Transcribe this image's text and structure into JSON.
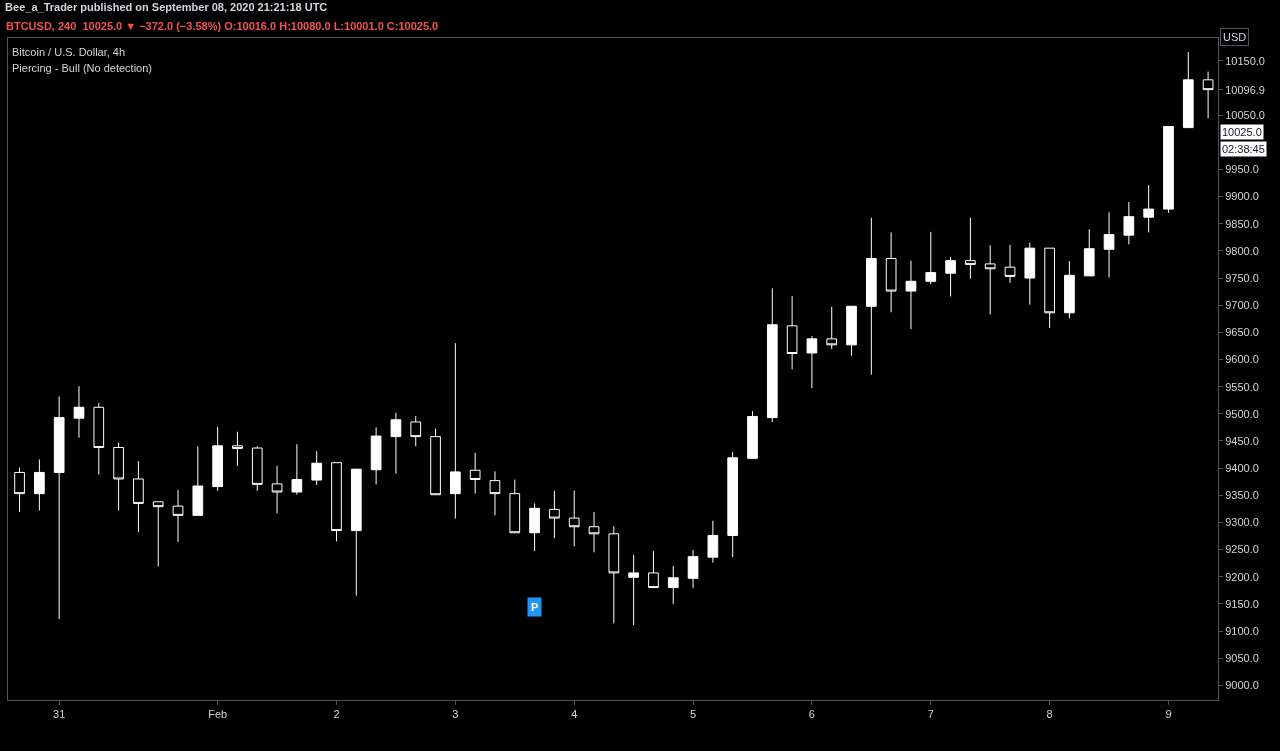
{
  "chart_data": {
    "type": "candlestick",
    "title": "Bee_a_Trader published on September 08, 2020 21:21:18 UTC",
    "subtitle": "BTCUSD, 240  10025.0 ▼ −372.0 (−3.58%) O:10016.0 H:10080.0 L:10001.0 C:10025.0",
    "annotations": [
      "Bitcoin / U.S. Dollar, 4h",
      "Piercing - Bull (No detection)",
      {
        "text": "P",
        "x": "2020-02-03T16:00",
        "y": 9145
      },
      "10025.0",
      "02:38:45"
    ],
    "x": [
      "2020-01-30T08:00",
      "2020-01-30T12:00",
      "2020-01-30T16:00",
      "2020-01-30T20:00",
      "2020-01-31T00:00",
      "2020-01-31T04:00",
      "2020-01-31T08:00",
      "2020-01-31T12:00",
      "2020-01-31T16:00",
      "2020-01-31T20:00",
      "2020-02-01T00:00",
      "2020-02-01T04:00",
      "2020-02-01T08:00",
      "2020-02-01T12:00",
      "2020-02-01T16:00",
      "2020-02-01T20:00",
      "2020-02-02T00:00",
      "2020-02-02T04:00",
      "2020-02-02T08:00",
      "2020-02-02T12:00",
      "2020-02-02T16:00",
      "2020-02-02T20:00",
      "2020-02-03T00:00",
      "2020-02-03T04:00",
      "2020-02-03T08:00",
      "2020-02-03T12:00",
      "2020-02-03T16:00",
      "2020-02-03T20:00",
      "2020-02-04T00:00",
      "2020-02-04T04:00",
      "2020-02-04T08:00",
      "2020-02-04T12:00",
      "2020-02-04T16:00",
      "2020-02-04T20:00",
      "2020-02-05T00:00",
      "2020-02-05T04:00",
      "2020-02-05T08:00",
      "2020-02-05T12:00",
      "2020-02-05T16:00",
      "2020-02-05T20:00",
      "2020-02-06T00:00",
      "2020-02-06T04:00",
      "2020-02-06T08:00",
      "2020-02-06T12:00",
      "2020-02-06T16:00",
      "2020-02-06T20:00",
      "2020-02-07T00:00",
      "2020-02-07T04:00",
      "2020-02-07T08:00",
      "2020-02-07T12:00",
      "2020-02-07T16:00",
      "2020-02-07T20:00",
      "2020-02-08T00:00",
      "2020-02-08T04:00",
      "2020-02-08T08:00",
      "2020-02-08T12:00",
      "2020-02-08T16:00",
      "2020-02-08T20:00",
      "2020-02-09T00:00",
      "2020-02-09T04:00",
      "2020-02-09T08:00"
    ],
    "series": [
      {
        "color": "#ffffff",
        "ohlc": [
          [
            9392,
            9401,
            9319,
            9353
          ],
          [
            9353,
            9416,
            9322,
            9392
          ],
          [
            9392,
            9532,
            9122,
            9493
          ],
          [
            9492,
            9551,
            9456,
            9512
          ],
          [
            9512,
            9520,
            9388,
            9438
          ],
          [
            9438,
            9447,
            9322,
            9380
          ],
          [
            9380,
            9413,
            9282,
            9335
          ],
          [
            9338,
            9338,
            9219,
            9329
          ],
          [
            9330,
            9360,
            9264,
            9313
          ],
          [
            9313,
            9440,
            9313,
            9367
          ],
          [
            9366,
            9476,
            9358,
            9441
          ],
          [
            9441,
            9467,
            9404,
            9436
          ],
          [
            9437,
            9440,
            9358,
            9370
          ],
          [
            9371,
            9404,
            9317,
            9356
          ],
          [
            9356,
            9444,
            9351,
            9379
          ],
          [
            9378,
            9431,
            9369,
            9409
          ],
          [
            9410,
            9410,
            9265,
            9285
          ],
          [
            9285,
            9399,
            9165,
            9398
          ],
          [
            9397,
            9475,
            9370,
            9459
          ],
          [
            9458,
            9502,
            9390,
            9489
          ],
          [
            9485,
            9496,
            9440,
            9458
          ],
          [
            9458,
            9473,
            9351,
            9351
          ],
          [
            9353,
            9630,
            9307,
            9393
          ],
          [
            9396,
            9428,
            9353,
            9379
          ],
          [
            9377,
            9394,
            9313,
            9353
          ],
          [
            9353,
            9379,
            9281,
            9281
          ],
          [
            9281,
            9335,
            9247,
            9326
          ],
          [
            9324,
            9358,
            9271,
            9308
          ],
          [
            9308,
            9359,
            9256,
            9292
          ],
          [
            9292,
            9319,
            9245,
            9279
          ],
          [
            9279,
            9293,
            9114,
            9207
          ],
          [
            9199,
            9240,
            9111,
            9207
          ],
          [
            9207,
            9247,
            9180,
            9180
          ],
          [
            9180,
            9220,
            9150,
            9198
          ],
          [
            9197,
            9249,
            9179,
            9237
          ],
          [
            9236,
            9303,
            9226,
            9276
          ],
          [
            9276,
            9430,
            9236,
            9419
          ],
          [
            9418,
            9505,
            9418,
            9495
          ],
          [
            9493,
            9731,
            9485,
            9664
          ],
          [
            9662,
            9717,
            9582,
            9611
          ],
          [
            9612,
            9643,
            9547,
            9638
          ],
          [
            9638,
            9697,
            9619,
            9627
          ],
          [
            9627,
            9699,
            9607,
            9698
          ],
          [
            9698,
            9861,
            9572,
            9786
          ],
          [
            9786,
            9834,
            9687,
            9726
          ],
          [
            9726,
            9782,
            9656,
            9744
          ],
          [
            9744,
            9835,
            9739,
            9760
          ],
          [
            9759,
            9789,
            9716,
            9782
          ],
          [
            9782,
            9861,
            9749,
            9775
          ],
          [
            9776,
            9810,
            9683,
            9767
          ],
          [
            9770,
            9811,
            9741,
            9753
          ],
          [
            9750,
            9815,
            9701,
            9805
          ],
          [
            9805,
            9805,
            9658,
            9686
          ],
          [
            9686,
            9781,
            9676,
            9755
          ],
          [
            9754,
            9840,
            9754,
            9804
          ],
          [
            9803,
            9871,
            9751,
            9830
          ],
          [
            9829,
            9890,
            9812,
            9863
          ],
          [
            9862,
            9921,
            9834,
            9877
          ],
          [
            9877,
            10029,
            9870,
            10029
          ],
          [
            10027,
            10166,
            10027,
            10115
          ],
          [
            10115,
            10130,
            10044,
            10096.9
          ]
        ]
      }
    ],
    "xlim": [
      "2020-01-30T05:40",
      "2020-02-09T10:00"
    ],
    "xticks": [
      {
        "value": "2020-01-30T16:00",
        "label": "31"
      },
      {
        "value": "2020-02-01",
        "label": "Feb"
      },
      {
        "value": "2020-02-02",
        "label": "2"
      },
      {
        "value": "2020-02-03",
        "label": "3"
      },
      {
        "value": "2020-02-04",
        "label": "4"
      },
      {
        "value": "2020-02-05",
        "label": "5"
      },
      {
        "value": "2020-02-06",
        "label": "6"
      },
      {
        "value": "2020-02-07",
        "label": "7"
      },
      {
        "value": "2020-02-08",
        "label": "8"
      },
      {
        "value": "2020-02-09",
        "label": "9"
      }
    ],
    "ylim": [
      8973,
      10192
    ],
    "yticks": [
      {
        "value": 9000,
        "label": "9000.0"
      },
      {
        "value": 9050,
        "label": "9050.0"
      },
      {
        "value": 9100,
        "label": "9100.0"
      },
      {
        "value": 9150,
        "label": "9150.0"
      },
      {
        "value": 9200,
        "label": "9200.0"
      },
      {
        "value": 9250,
        "label": "9250.0"
      },
      {
        "value": 9300,
        "label": "9300.0"
      },
      {
        "value": 9350,
        "label": "9350.0"
      },
      {
        "value": 9400,
        "label": "9400.0"
      },
      {
        "value": 9450,
        "label": "9450.0"
      },
      {
        "value": 9500,
        "label": "9500.0"
      },
      {
        "value": 9550,
        "label": "9550.0"
      },
      {
        "value": 9600,
        "label": "9600.0"
      },
      {
        "value": 9650,
        "label": "9650.0"
      },
      {
        "value": 9700,
        "label": "9700.0"
      },
      {
        "value": 9750,
        "label": "9750.0"
      },
      {
        "value": 9800,
        "label": "9800.0"
      },
      {
        "value": 9850,
        "label": "9850.0"
      },
      {
        "value": 9900,
        "label": "9900.0"
      },
      {
        "value": 9950,
        "label": "9950.0"
      },
      {
        "value": 10050,
        "label": "10050.0"
      },
      10096.9,
      {
        "value": 10150,
        "label": "10150.0"
      }
    ],
    "ylabel": "USD",
    "grid": false
  }
}
